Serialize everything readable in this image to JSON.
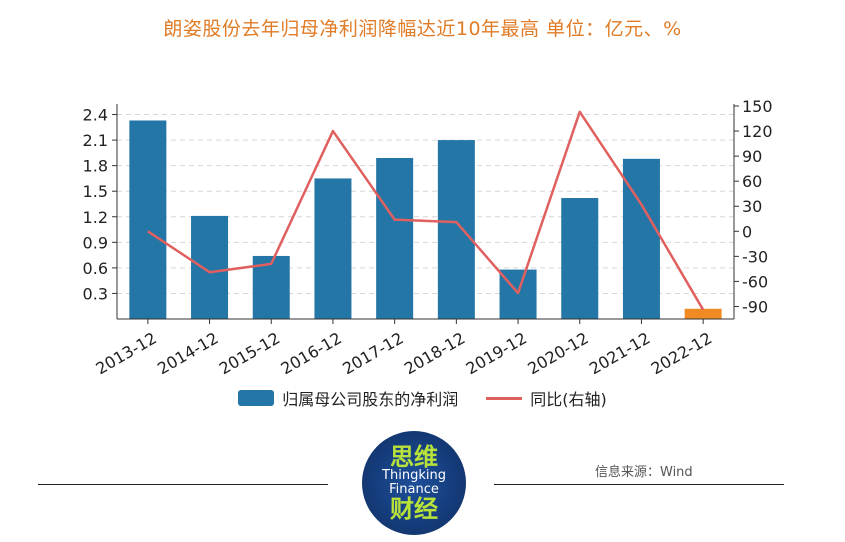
{
  "title": "朗姿股份去年归母净利润降幅达近10年最高 单位：亿元、%",
  "source": "信息来源：Wind",
  "logo": {
    "top": "思维",
    "line1": "Thingking",
    "line2": "Finance",
    "bottom": "财经"
  },
  "colors": {
    "bar": "#2476a6",
    "bar_highlight": "#f08b24",
    "line": "#e06060",
    "title": "#e07b26"
  },
  "chart_data": {
    "type": "bar",
    "categories": [
      "2013-12",
      "2014-12",
      "2015-12",
      "2016-12",
      "2017-12",
      "2018-12",
      "2019-12",
      "2020-12",
      "2021-12",
      "2022-12"
    ],
    "series": [
      {
        "name": "归属母公司股东的净利润",
        "type": "bar",
        "axis": "left",
        "values": [
          2.33,
          1.21,
          0.74,
          1.65,
          1.89,
          2.1,
          0.58,
          1.42,
          1.88,
          0.12
        ],
        "highlight_index": 9
      },
      {
        "name": "同比(右轴)",
        "type": "line",
        "axis": "right",
        "values": [
          0,
          -49,
          -39,
          120,
          14,
          11,
          -74,
          143,
          32,
          -94
        ]
      }
    ],
    "y_left": {
      "ticks": [
        "0.3",
        "0.6",
        "0.9",
        "1.2",
        "1.5",
        "1.8",
        "2.1",
        "2.4"
      ],
      "range": [
        0,
        2.5
      ]
    },
    "y_right": {
      "ticks": [
        "-90",
        "-60",
        "-30",
        "0",
        "30",
        "60",
        "90",
        "120",
        "150"
      ],
      "range": [
        -105,
        150
      ]
    },
    "grid": true,
    "legend_position": "bottom"
  }
}
